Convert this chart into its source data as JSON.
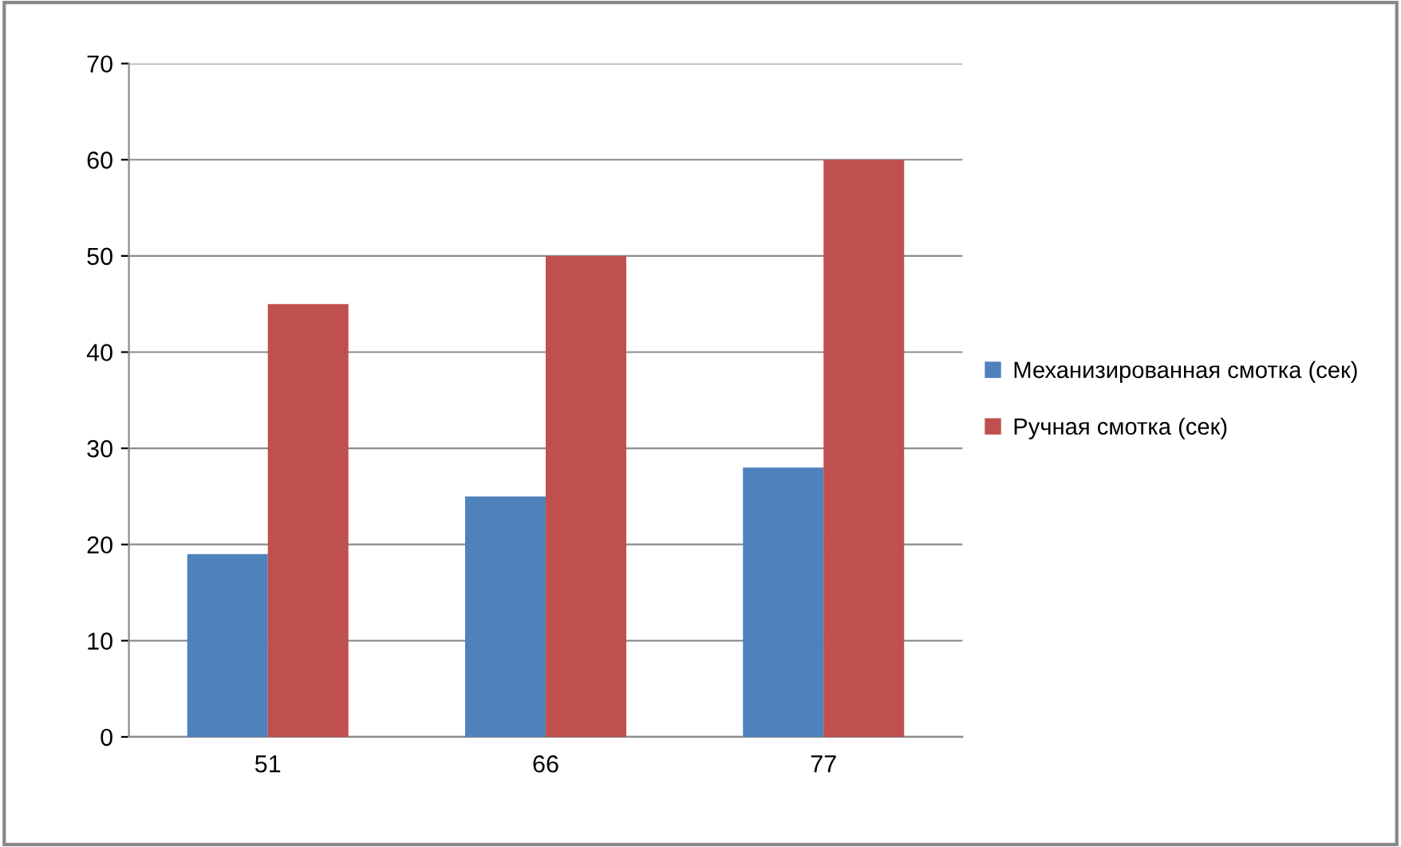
{
  "chart_data": {
    "type": "bar",
    "categories": [
      "51",
      "66",
      "77"
    ],
    "series": [
      {
        "name": "Механизированная смотка (сек)",
        "color": "#4f81bd",
        "values": [
          19,
          25,
          28
        ]
      },
      {
        "name": "Ручная смотка (сек)",
        "color": "#c0504d",
        "values": [
          45,
          50,
          60
        ]
      }
    ],
    "ylim": [
      0,
      70
    ],
    "yticks": [
      0,
      10,
      20,
      30,
      40,
      50,
      60,
      70
    ],
    "grid": "y",
    "legend": "right"
  }
}
